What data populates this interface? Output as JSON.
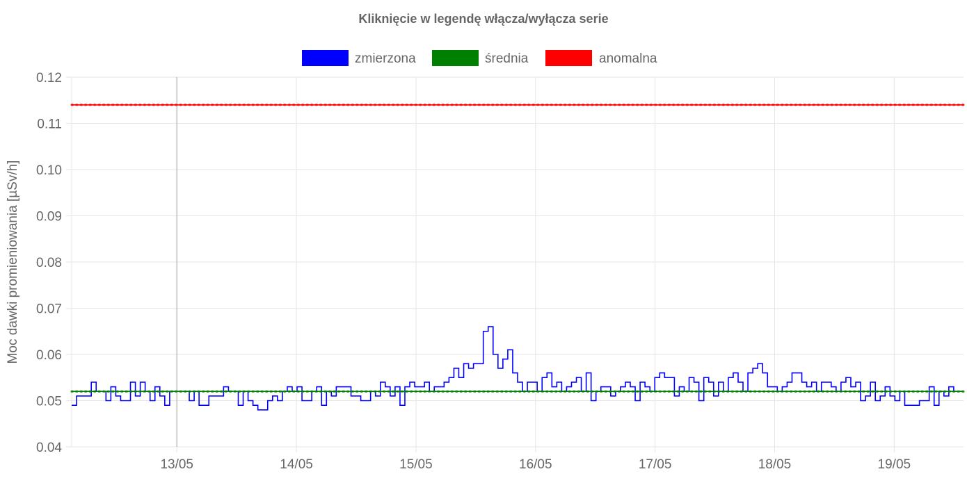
{
  "chart_data": {
    "type": "line",
    "title": "Kliknięcie w legendę włącza/wyłącza serie",
    "ylabel": "Moc dawki promieniowania [µSv/h]",
    "xlabel": "",
    "ylim": [
      0.04,
      0.12
    ],
    "y_ticks": [
      "0.04",
      "0.05",
      "0.06",
      "0.07",
      "0.08",
      "0.09",
      "0.10",
      "0.11",
      "0.12"
    ],
    "x_ticks": [
      "13/05",
      "14/05",
      "15/05",
      "16/05",
      "17/05",
      "18/05",
      "19/05"
    ],
    "x_range_days": [
      12.12,
      19.58
    ],
    "grid": true,
    "legend_position": "top-center",
    "step": true,
    "series": [
      {
        "name": "zmierzona",
        "color": "#0000ff",
        "values": [
          0.049,
          0.051,
          0.051,
          0.051,
          0.054,
          0.052,
          0.052,
          0.05,
          0.053,
          0.051,
          0.05,
          0.05,
          0.054,
          0.051,
          0.054,
          0.052,
          0.05,
          0.053,
          0.051,
          0.049,
          0.052,
          0.052,
          0.052,
          0.052,
          0.05,
          0.052,
          0.049,
          0.049,
          0.051,
          0.051,
          0.051,
          0.053,
          0.052,
          0.052,
          0.049,
          0.052,
          0.05,
          0.049,
          0.048,
          0.048,
          0.05,
          0.051,
          0.05,
          0.052,
          0.053,
          0.052,
          0.053,
          0.05,
          0.05,
          0.052,
          0.053,
          0.049,
          0.052,
          0.051,
          0.053,
          0.053,
          0.053,
          0.051,
          0.051,
          0.05,
          0.05,
          0.052,
          0.051,
          0.054,
          0.053,
          0.051,
          0.053,
          0.049,
          0.053,
          0.054,
          0.053,
          0.053,
          0.054,
          0.052,
          0.053,
          0.053,
          0.054,
          0.055,
          0.057,
          0.055,
          0.058,
          0.057,
          0.058,
          0.058,
          0.065,
          0.066,
          0.06,
          0.057,
          0.059,
          0.061,
          0.056,
          0.054,
          0.052,
          0.054,
          0.054,
          0.052,
          0.055,
          0.056,
          0.053,
          0.054,
          0.052,
          0.053,
          0.054,
          0.055,
          0.052,
          0.056,
          0.05,
          0.052,
          0.053,
          0.053,
          0.051,
          0.052,
          0.053,
          0.054,
          0.053,
          0.05,
          0.054,
          0.053,
          0.052,
          0.055,
          0.056,
          0.055,
          0.055,
          0.051,
          0.053,
          0.052,
          0.055,
          0.054,
          0.05,
          0.055,
          0.054,
          0.051,
          0.054,
          0.052,
          0.055,
          0.056,
          0.054,
          0.052,
          0.056,
          0.057,
          0.058,
          0.056,
          0.053,
          0.053,
          0.052,
          0.053,
          0.054,
          0.056,
          0.056,
          0.054,
          0.053,
          0.054,
          0.052,
          0.054,
          0.054,
          0.053,
          0.052,
          0.054,
          0.055,
          0.053,
          0.054,
          0.05,
          0.051,
          0.054,
          0.05,
          0.051,
          0.053,
          0.051,
          0.05,
          0.052,
          0.049,
          0.049,
          0.049,
          0.05,
          0.05,
          0.053,
          0.049,
          0.052,
          0.051,
          0.053,
          0.052,
          0.052
        ]
      },
      {
        "name": "średnia",
        "color": "#008000",
        "values": [
          0.052,
          0.052
        ]
      },
      {
        "name": "anomalna",
        "color": "#ff0000",
        "values": [
          0.114,
          0.114
        ]
      }
    ]
  }
}
